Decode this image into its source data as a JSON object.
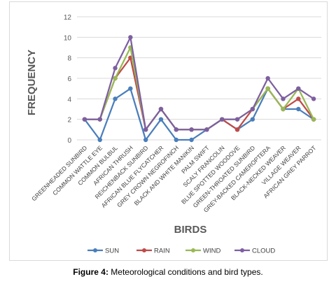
{
  "chart_data": {
    "type": "line",
    "xlabel": "BIRDS",
    "ylabel": "FREQUENCY",
    "ylim": [
      0,
      12
    ],
    "yticks": [
      0,
      2,
      4,
      6,
      8,
      10,
      12
    ],
    "grid": true,
    "legend_position": "bottom",
    "categories": [
      "GREENHEADED SUNBIRD",
      "COMMON WATTLE EYE",
      "COMMON BULBUL",
      "AFRICAN THRUSH",
      "REICHENBACK SUNBIRD",
      "AFRICAN BLUE FLYCATCHER",
      "GREY CROWN NEGROFINCH",
      "BLACK AND WHITE MANIKIN",
      "PALM SWIFT",
      "SCALY FRANCOLIN",
      "BLUE SPOTTED WOODOVE",
      "GREEN-THROATED SUNBIRD",
      "GREY-BACKED CAMEROPTERA",
      "BLACK-NECKED WEAVER",
      "VILLAGE WEAVER",
      "AFRICAN GREY PARROT"
    ],
    "series": [
      {
        "name": "SUN",
        "color": "#4a7ebb",
        "values": [
          2,
          0,
          4,
          5,
          0,
          2,
          0,
          0,
          1,
          2,
          1,
          2,
          5,
          3,
          3,
          2
        ]
      },
      {
        "name": "RAIN",
        "color": "#be4b48",
        "values": [
          2,
          2,
          6,
          8,
          1,
          3,
          1,
          1,
          1,
          2,
          1,
          3,
          5,
          3,
          4,
          2
        ]
      },
      {
        "name": "WIND",
        "color": "#98b954",
        "values": [
          2,
          2,
          6,
          9,
          1,
          3,
          1,
          1,
          1,
          2,
          2,
          3,
          5,
          3,
          5,
          2
        ]
      },
      {
        "name": "CLOUD",
        "color": "#7d5fa0",
        "values": [
          2,
          2,
          7,
          10,
          1,
          3,
          1,
          1,
          1,
          2,
          2,
          3,
          6,
          4,
          5,
          4
        ]
      }
    ]
  },
  "caption": {
    "label": "Figure 4:",
    "text": " Meteorological conditions and bird types."
  }
}
